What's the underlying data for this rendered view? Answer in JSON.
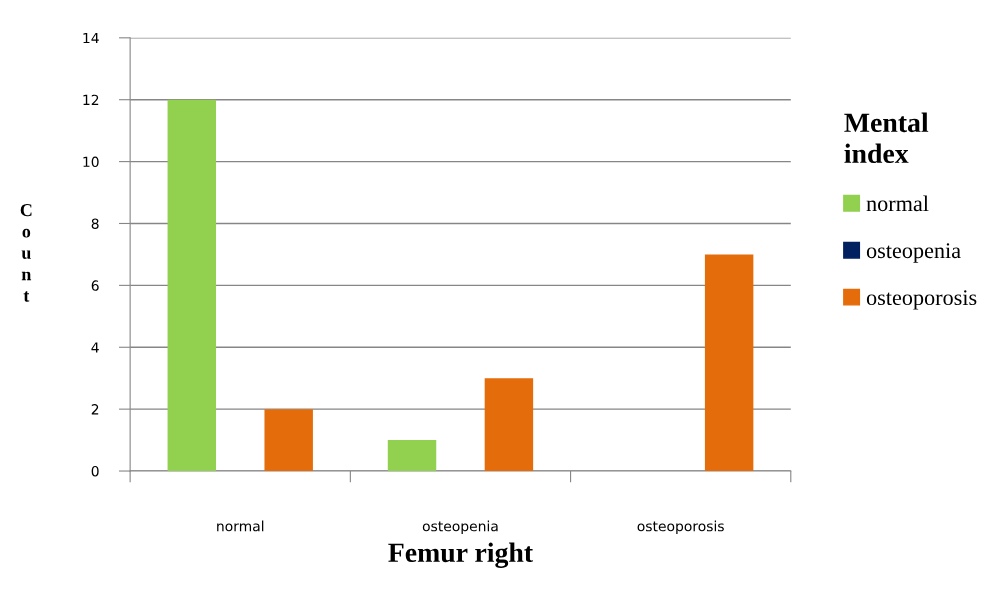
{
  "chart_data": {
    "type": "bar",
    "xlabel": "Femur right",
    "ylabel": "Count",
    "legend_title": "Mental index",
    "categories": [
      "normal",
      "osteopenia",
      "osteoporosis"
    ],
    "series": [
      {
        "name": "normal",
        "color": "#92d050",
        "values": [
          12,
          1,
          0
        ]
      },
      {
        "name": "osteopenia",
        "color": "#002060",
        "values": [
          0,
          0,
          0
        ]
      },
      {
        "name": "osteoporosis",
        "color": "#e46c0a",
        "values": [
          2,
          3,
          7
        ]
      }
    ],
    "ylim": [
      0,
      14
    ],
    "yticks": [
      0,
      2,
      4,
      6,
      8,
      10,
      12,
      14
    ],
    "grid": "y",
    "legend": "right"
  }
}
